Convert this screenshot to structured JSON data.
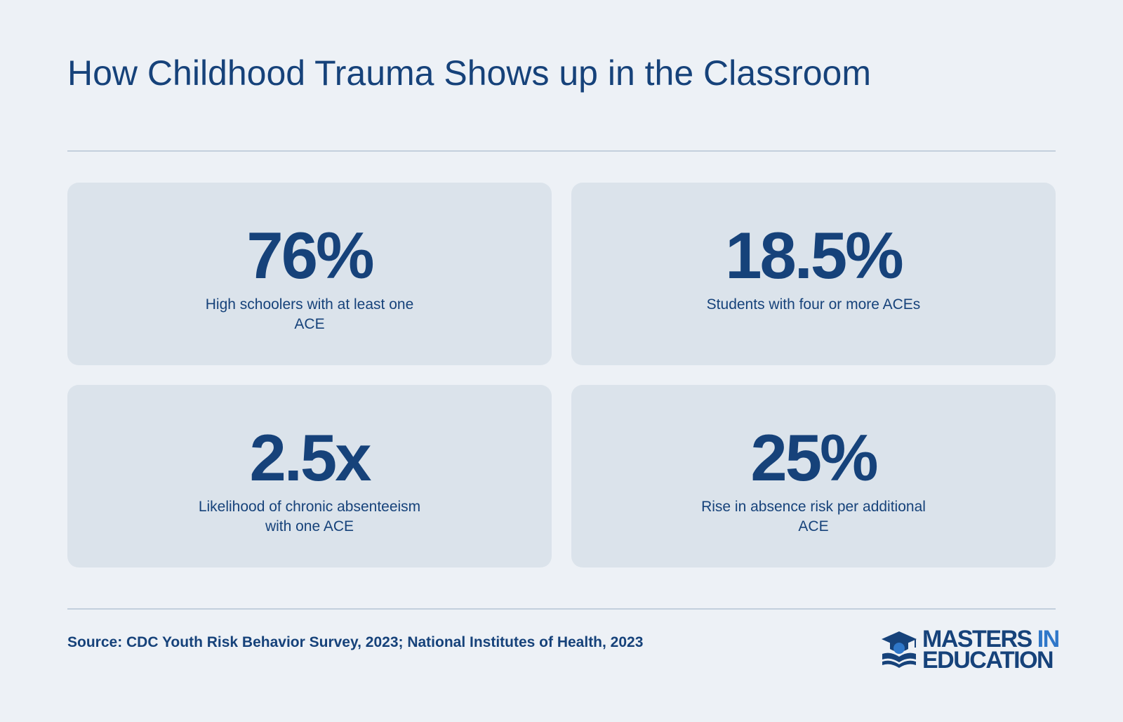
{
  "title": "How Childhood Trauma Shows up in the Classroom",
  "stats": [
    {
      "value": "76%",
      "label": "High schoolers with at least one ACE"
    },
    {
      "value": "18.5%",
      "label": "Students with four or more ACEs"
    },
    {
      "value": "2.5x",
      "label": "Likelihood of chronic absenteeism with one ACE"
    },
    {
      "value": "25%",
      "label": "Rise in absence risk per additional ACE"
    }
  ],
  "source": "Source: CDC Youth Risk Behavior Survey, 2023; National Institutes of Health, 2023",
  "logo": {
    "line1_main": "MASTERS",
    "line1_accent": "IN",
    "line2": "EDUCATION",
    "icon": "graduation-cap-book-icon"
  },
  "colors": {
    "background": "#edf1f6",
    "card": "#dbe3eb",
    "text": "#16427a",
    "accent": "#2f77c9",
    "rule": "#c3cfdd"
  }
}
